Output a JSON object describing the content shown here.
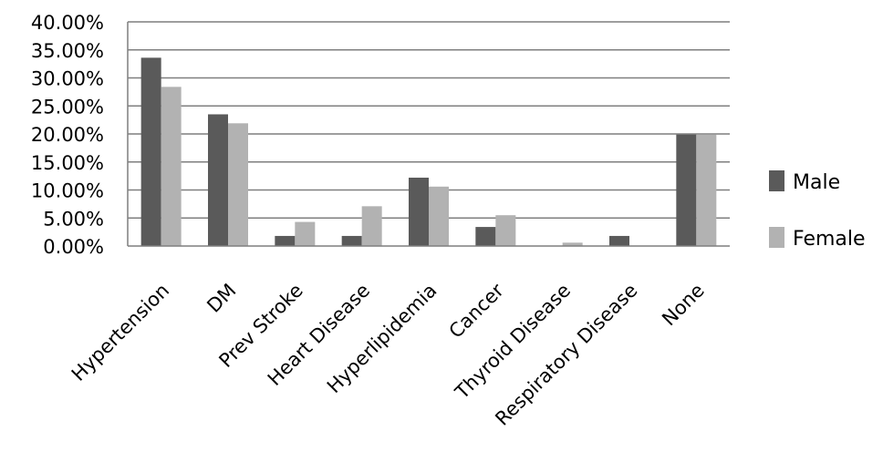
{
  "chart_data": {
    "type": "bar",
    "categories": [
      "Hypertension",
      "DM",
      "Prev Stroke",
      "Heart Disease",
      "Hyperlipidemia",
      "Cancer",
      "Thyroid Disease",
      "Respiratory Disease",
      "None"
    ],
    "series": [
      {
        "name": "Male",
        "color": "#5a5a5a",
        "values": [
          33.6,
          23.5,
          1.8,
          1.8,
          12.2,
          3.4,
          0,
          1.8,
          19.9
        ]
      },
      {
        "name": "Female",
        "color": "#b2b2b2",
        "values": [
          28.4,
          21.9,
          4.3,
          7.1,
          10.6,
          5.5,
          0.6,
          0,
          19.9
        ]
      }
    ],
    "ylim": [
      0,
      40
    ],
    "y_ticks": [
      "0.00%",
      "5.00%",
      "10.00%",
      "15.00%",
      "20.00%",
      "25.00%",
      "30.00%",
      "35.00%",
      "40.00%"
    ],
    "y_tick_values": [
      0,
      5,
      10,
      15,
      20,
      25,
      30,
      35,
      40
    ],
    "grid": true,
    "grid_color": "#7f7f7f",
    "legend_position": "right",
    "title": "",
    "xlabel": "",
    "ylabel": ""
  }
}
